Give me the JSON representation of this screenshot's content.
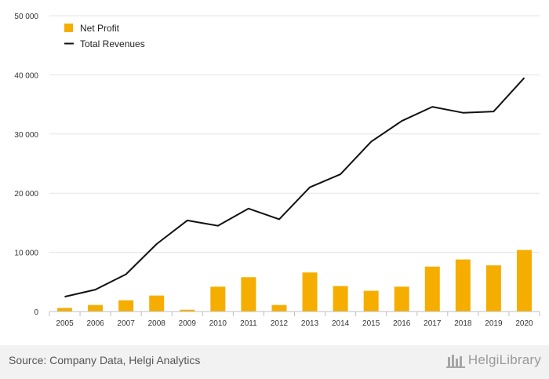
{
  "chart_data": {
    "type": "bar",
    "categories": [
      "2005",
      "2006",
      "2007",
      "2008",
      "2009",
      "2010",
      "2011",
      "2012",
      "2013",
      "2014",
      "2015",
      "2016",
      "2017",
      "2018",
      "2019",
      "2020"
    ],
    "series": [
      {
        "name": "Net Profit",
        "type": "bar",
        "color": "#f5ae00",
        "values": [
          600,
          1100,
          1900,
          2700,
          300,
          4200,
          5800,
          1100,
          6600,
          4300,
          3500,
          4200,
          7600,
          8800,
          7800,
          10400
        ]
      },
      {
        "name": "Total Revenues",
        "type": "line",
        "color": "#111111",
        "values": [
          2500,
          3700,
          6300,
          11400,
          15400,
          14500,
          17400,
          15600,
          21000,
          23200,
          28700,
          32200,
          34600,
          33600,
          33800,
          39500
        ]
      }
    ],
    "yticks": [
      "0",
      "10 000",
      "20 000",
      "30 000",
      "40 000",
      "50 000"
    ],
    "ylim": [
      0,
      50000
    ],
    "grid": true,
    "legend_position": "top-left",
    "title": "",
    "xlabel": "",
    "ylabel": ""
  },
  "footer": {
    "source": "Source: Company Data, Helgi Analytics",
    "logo_text": "HelgiLibrary",
    "logo_icon": "helgi-library-icon"
  }
}
